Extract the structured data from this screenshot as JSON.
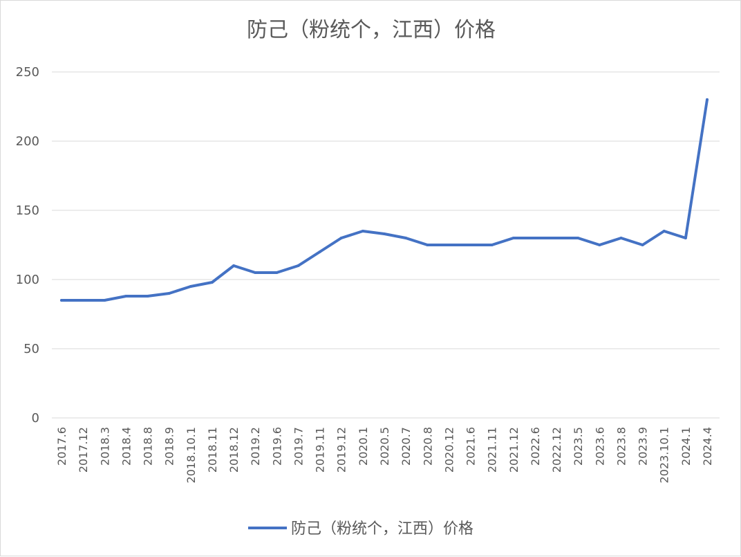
{
  "chart_data": {
    "type": "line",
    "title": "防己（粉统个，江西）价格",
    "xlabel": "",
    "ylabel": "",
    "ylim": [
      0,
      250
    ],
    "yticks": [
      0,
      50,
      100,
      150,
      200,
      250
    ],
    "grid": true,
    "legend_position": "bottom",
    "line_color": "#4472c4",
    "categories": [
      "2017.6",
      "2017.12",
      "2018.3",
      "2018.4",
      "2018.8",
      "2018.9",
      "2018.10.1",
      "2018.11",
      "2018.12",
      "2019.2",
      "2019.6",
      "2019.7",
      "2019.11",
      "2019.12",
      "2020.1",
      "2020.5",
      "2020.7",
      "2020.8",
      "2020.12",
      "2021.6",
      "2021.11",
      "2021.12",
      "2022.6",
      "2022.12",
      "2023.5",
      "2023.6",
      "2023.8",
      "2023.9",
      "2023.10.1",
      "2024.1",
      "2024.4"
    ],
    "series": [
      {
        "name": "防己（粉统个，江西）价格",
        "values": [
          85,
          85,
          85,
          88,
          88,
          90,
          95,
          98,
          110,
          105,
          105,
          110,
          120,
          130,
          135,
          133,
          130,
          125,
          125,
          125,
          125,
          130,
          130,
          130,
          130,
          125,
          130,
          125,
          135,
          130,
          230
        ]
      }
    ]
  }
}
